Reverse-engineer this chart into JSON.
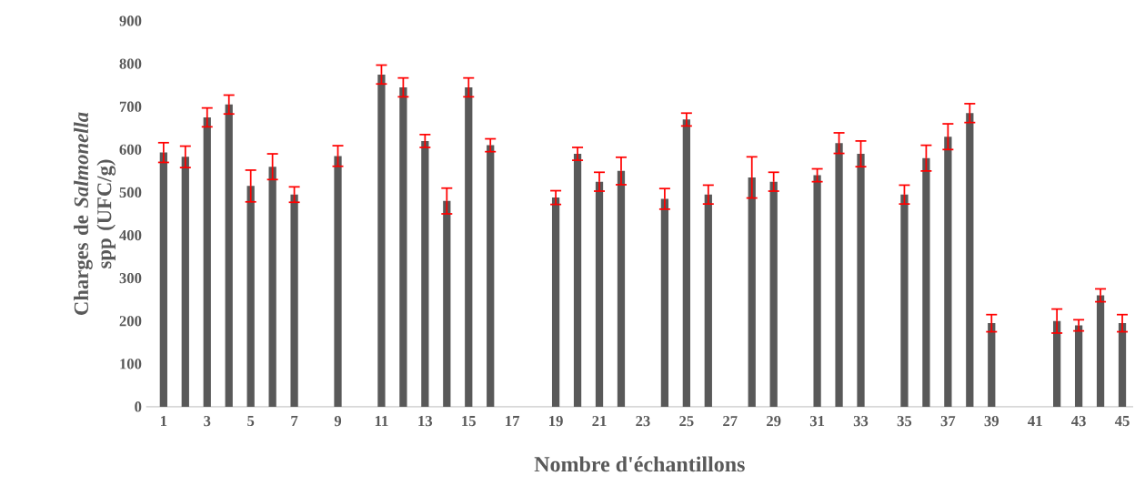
{
  "chart_data": {
    "type": "bar",
    "xlabel": "Nombre d'échantillons",
    "ylabel": "Charges de *Salmonella* spp (UFC/g)",
    "categories": [
      "1",
      null,
      "3",
      null,
      "5",
      null,
      "7",
      null,
      "9",
      null,
      "11",
      null,
      "13",
      null,
      "15",
      null,
      "17",
      null,
      "19",
      null,
      "21",
      null,
      "23",
      null,
      "25",
      null,
      "27",
      null,
      "29",
      null,
      "31",
      null,
      "33",
      null,
      "35",
      null,
      "37",
      null,
      "39",
      null,
      "41",
      null,
      "43",
      null,
      "45"
    ],
    "values": [
      593,
      583,
      675,
      705,
      515,
      560,
      495,
      null,
      585,
      null,
      775,
      745,
      620,
      480,
      745,
      610,
      null,
      null,
      488,
      590,
      525,
      550,
      null,
      485,
      670,
      495,
      null,
      535,
      525,
      null,
      540,
      615,
      590,
      null,
      495,
      580,
      630,
      685,
      195,
      null,
      null,
      200,
      190,
      260,
      195
    ],
    "errors": [
      23,
      25,
      22,
      22,
      37,
      30,
      18,
      null,
      24,
      null,
      22,
      22,
      15,
      30,
      22,
      15,
      null,
      null,
      16,
      15,
      22,
      32,
      null,
      24,
      15,
      22,
      null,
      48,
      22,
      null,
      15,
      24,
      30,
      null,
      22,
      30,
      30,
      22,
      20,
      null,
      null,
      28,
      13,
      15,
      20
    ],
    "color": "#595959",
    "ylim": [
      0,
      900
    ],
    "yticks": [
      0,
      100,
      200,
      300,
      400,
      500,
      600,
      700,
      800,
      900
    ]
  }
}
